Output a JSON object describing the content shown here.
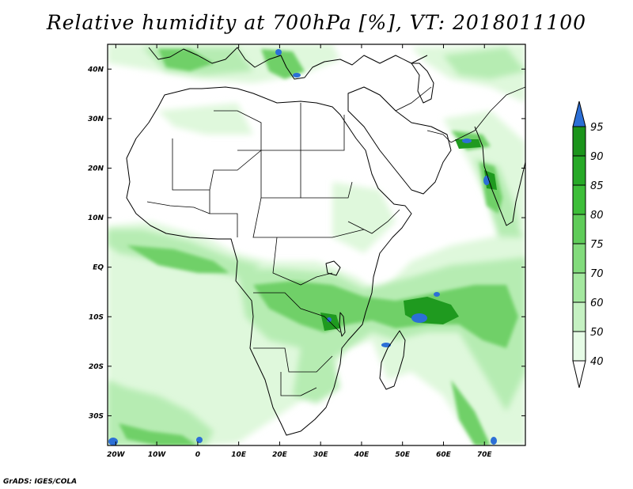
{
  "title": "Relative humidity at 700hPa [%], VT: 2018011100",
  "footer": "GrADS: IGES/COLA",
  "map": {
    "lon_range": [
      -22,
      80
    ],
    "lat_range": [
      -36,
      45
    ],
    "lon_ticks": [
      {
        "value": -20,
        "label": "20W"
      },
      {
        "value": -10,
        "label": "10W"
      },
      {
        "value": 0,
        "label": "0"
      },
      {
        "value": 10,
        "label": "10E"
      },
      {
        "value": 20,
        "label": "20E"
      },
      {
        "value": 30,
        "label": "30E"
      },
      {
        "value": 40,
        "label": "40E"
      },
      {
        "value": 50,
        "label": "50E"
      },
      {
        "value": 60,
        "label": "60E"
      },
      {
        "value": 70,
        "label": "70E"
      }
    ],
    "lat_ticks": [
      {
        "value": 40,
        "label": "40N"
      },
      {
        "value": 30,
        "label": "30N"
      },
      {
        "value": 20,
        "label": "20N"
      },
      {
        "value": 10,
        "label": "10N"
      },
      {
        "value": 0,
        "label": "EQ"
      },
      {
        "value": -10,
        "label": "10S"
      },
      {
        "value": -20,
        "label": "20S"
      },
      {
        "value": -30,
        "label": "30S"
      }
    ]
  },
  "colorbar": {
    "levels": [
      {
        "label": "40",
        "color": "#e6fbe6"
      },
      {
        "label": "50",
        "color": "#c5f1c2"
      },
      {
        "label": "60",
        "color": "#a4e89f"
      },
      {
        "label": "70",
        "color": "#82db7c"
      },
      {
        "label": "75",
        "color": "#5fcc59"
      },
      {
        "label": "80",
        "color": "#3dbe39"
      },
      {
        "label": "85",
        "color": "#27a927"
      },
      {
        "label": "90",
        "color": "#1b941b"
      },
      {
        "label": "95",
        "color": "#2c6fd6"
      }
    ],
    "low_color": "#ffffff",
    "high_color": "#2c6fd6"
  }
}
